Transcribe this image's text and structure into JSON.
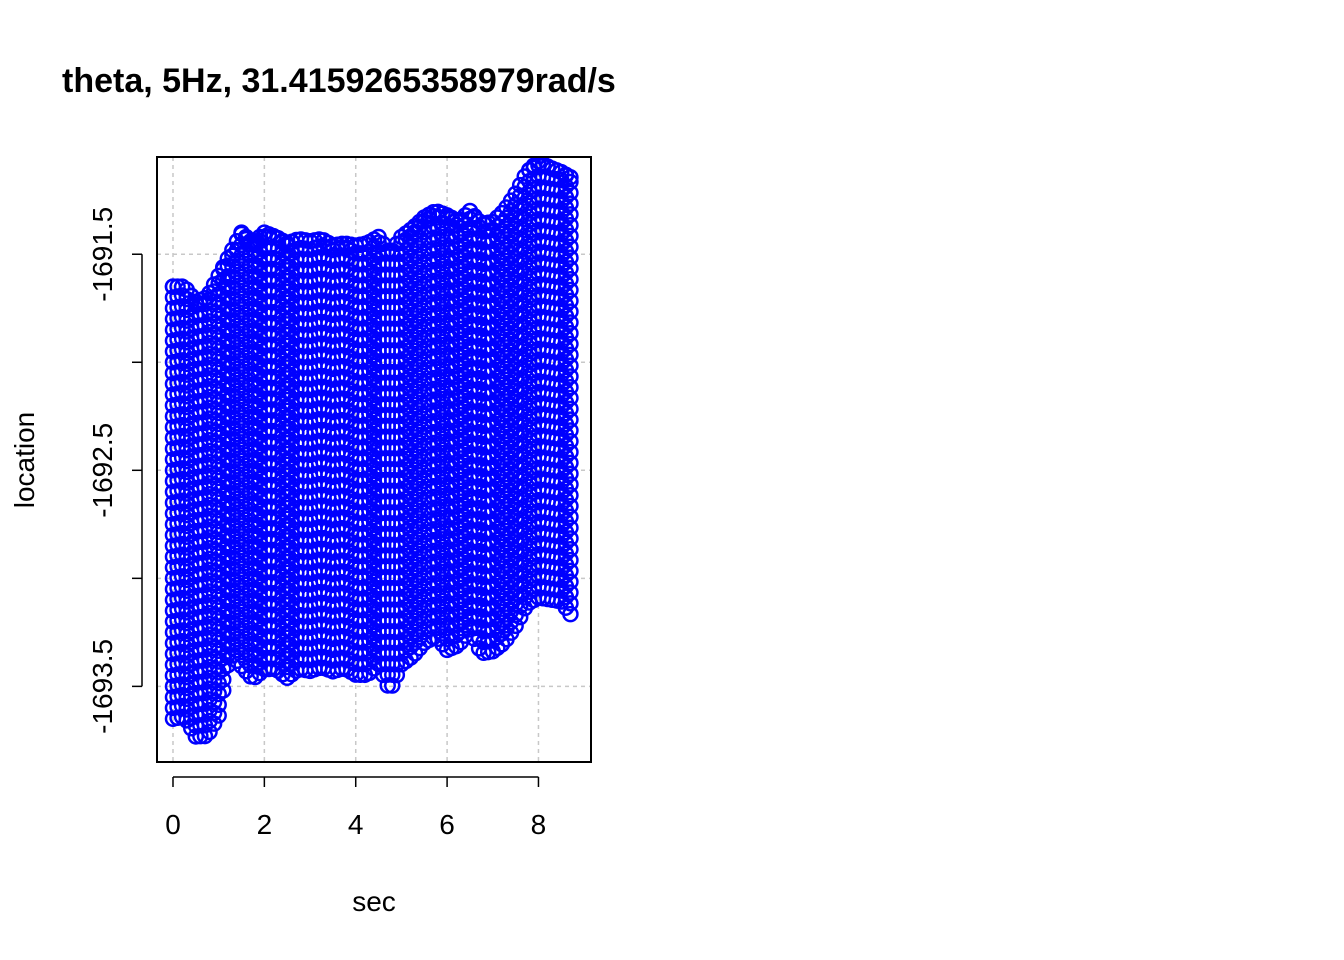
{
  "chart_data": {
    "type": "scatter",
    "title": "theta, 5Hz, 31.4159265358979rad/s",
    "xlabel": "sec",
    "ylabel": "location",
    "xlim": [
      -0.35,
      9.15
    ],
    "ylim": [
      -1693.85,
      -1691.05
    ],
    "xticks": [
      0,
      2,
      4,
      6,
      8
    ],
    "yticks": [
      -1691.5,
      -1692.5,
      -1693.5
    ],
    "yticks_minor": [
      -1692.0,
      -1693.0
    ],
    "grid": true,
    "marker": "open-circle",
    "color": "#0000ff",
    "series": [
      {
        "x": [
          0.0,
          0.25,
          0.5,
          0.75,
          1.0,
          1.25,
          1.5,
          1.75,
          2.0,
          2.25,
          2.5,
          2.75,
          3.0,
          3.25,
          3.5,
          3.75,
          4.0,
          4.25,
          4.5,
          4.75,
          5.0,
          5.25,
          5.5,
          5.75,
          6.0,
          6.25,
          6.5,
          6.75,
          7.0,
          7.25,
          7.5,
          7.75,
          8.0,
          8.25,
          8.5,
          8.75
        ],
        "y_upper": [
          -1691.65,
          -1691.65,
          -1691.72,
          -1691.7,
          -1691.6,
          -1691.5,
          -1691.4,
          -1691.45,
          -1691.4,
          -1691.42,
          -1691.45,
          -1691.43,
          -1691.44,
          -1691.43,
          -1691.46,
          -1691.45,
          -1691.46,
          -1691.45,
          -1691.42,
          -1691.5,
          -1691.42,
          -1691.38,
          -1691.33,
          -1691.3,
          -1691.32,
          -1691.35,
          -1691.3,
          -1691.36,
          -1691.35,
          -1691.3,
          -1691.22,
          -1691.12,
          -1691.07,
          -1691.1,
          -1691.12,
          -1691.15
        ],
        "y_lower": [
          -1693.65,
          -1693.65,
          -1693.75,
          -1693.75,
          -1693.65,
          -1693.35,
          -1693.4,
          -1693.45,
          -1693.4,
          -1693.4,
          -1693.45,
          -1693.42,
          -1693.44,
          -1693.43,
          -1693.45,
          -1693.43,
          -1693.45,
          -1693.44,
          -1693.38,
          -1693.5,
          -1693.38,
          -1693.35,
          -1693.3,
          -1693.28,
          -1693.35,
          -1693.33,
          -1693.25,
          -1693.35,
          -1693.33,
          -1693.28,
          -1693.2,
          -1693.1,
          -1693.08,
          -1693.1,
          -1693.12,
          -1693.2
        ]
      }
    ]
  }
}
